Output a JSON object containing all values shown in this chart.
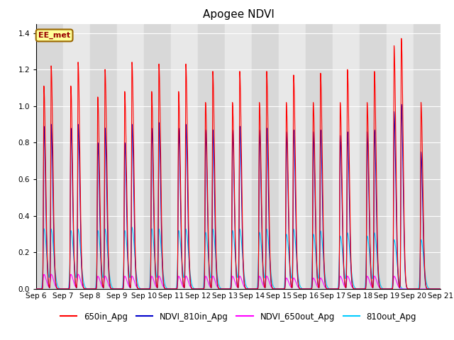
{
  "title": "Apogee NDVI",
  "ylim": [
    0,
    1.45
  ],
  "xlim_start": 0,
  "xlim_end": 15,
  "legend_labels": [
    "650in_Apg",
    "NDVI_810in_Apg",
    "NDVI_650out_Apg",
    "810out_Apg"
  ],
  "legend_colors": [
    "#ff0000",
    "#0000cc",
    "#ff00ff",
    "#00ccff"
  ],
  "series_colors": [
    "#ff0000",
    "#0000cc",
    "#ff00ff",
    "#00ccff"
  ],
  "annotation_text": "EE_met",
  "annotation_box_color": "#ffff99",
  "annotation_box_edge": "#996600",
  "background_color": "#ffffff",
  "plot_bg_color_light": "#e8e8e8",
  "plot_bg_color_dark": "#d8d8d8",
  "grid_color": "#ffffff",
  "title_fontsize": 11,
  "tick_fontsize": 7.5,
  "legend_fontsize": 8.5,
  "num_days": 15,
  "red_peaks1": [
    1.11,
    1.11,
    1.05,
    1.08,
    1.08,
    1.08,
    1.02,
    1.02,
    1.02,
    1.02,
    1.02,
    1.02,
    1.02,
    1.33,
    1.02
  ],
  "red_peaks2": [
    1.22,
    1.24,
    1.2,
    1.24,
    1.23,
    1.23,
    1.19,
    1.19,
    1.19,
    1.17,
    1.18,
    1.2,
    1.19,
    1.37,
    0.0
  ],
  "blue_peaks1": [
    0.89,
    0.88,
    0.8,
    0.8,
    0.88,
    0.88,
    0.87,
    0.87,
    0.87,
    0.86,
    0.86,
    0.84,
    0.86,
    0.97,
    0.75
  ],
  "blue_peaks2": [
    0.9,
    0.9,
    0.88,
    0.9,
    0.91,
    0.9,
    0.87,
    0.89,
    0.88,
    0.87,
    0.87,
    0.86,
    0.87,
    1.01,
    0.0
  ],
  "cyan_peaks1": [
    0.33,
    0.32,
    0.32,
    0.32,
    0.33,
    0.32,
    0.31,
    0.32,
    0.31,
    0.3,
    0.3,
    0.29,
    0.29,
    0.27,
    0.27
  ],
  "cyan_peaks2": [
    0.32,
    0.32,
    0.32,
    0.33,
    0.32,
    0.32,
    0.32,
    0.32,
    0.32,
    0.32,
    0.31,
    0.3,
    0.3,
    0.0,
    0.0
  ],
  "magenta_peaks1": [
    0.08,
    0.08,
    0.07,
    0.07,
    0.07,
    0.07,
    0.07,
    0.07,
    0.07,
    0.06,
    0.06,
    0.07,
    0.07,
    0.07,
    0.0
  ],
  "magenta_peaks2": [
    0.08,
    0.08,
    0.07,
    0.07,
    0.07,
    0.07,
    0.07,
    0.07,
    0.07,
    0.06,
    0.06,
    0.07,
    0.07,
    0.0,
    0.0
  ],
  "x_tick_labels": [
    "Sep 6",
    "Sep 7",
    "Sep 8",
    "Sep 9",
    "Sep 10",
    "Sep 11",
    "Sep 12",
    "Sep 13",
    "Sep 14",
    "Sep 15",
    "Sep 16",
    "Sep 17",
    "Sep 18",
    "Sep 19",
    "Sep 20",
    "Sep 21"
  ],
  "x_tick_positions": [
    0,
    1,
    2,
    3,
    4,
    5,
    6,
    7,
    8,
    9,
    10,
    11,
    12,
    13,
    14,
    15
  ]
}
